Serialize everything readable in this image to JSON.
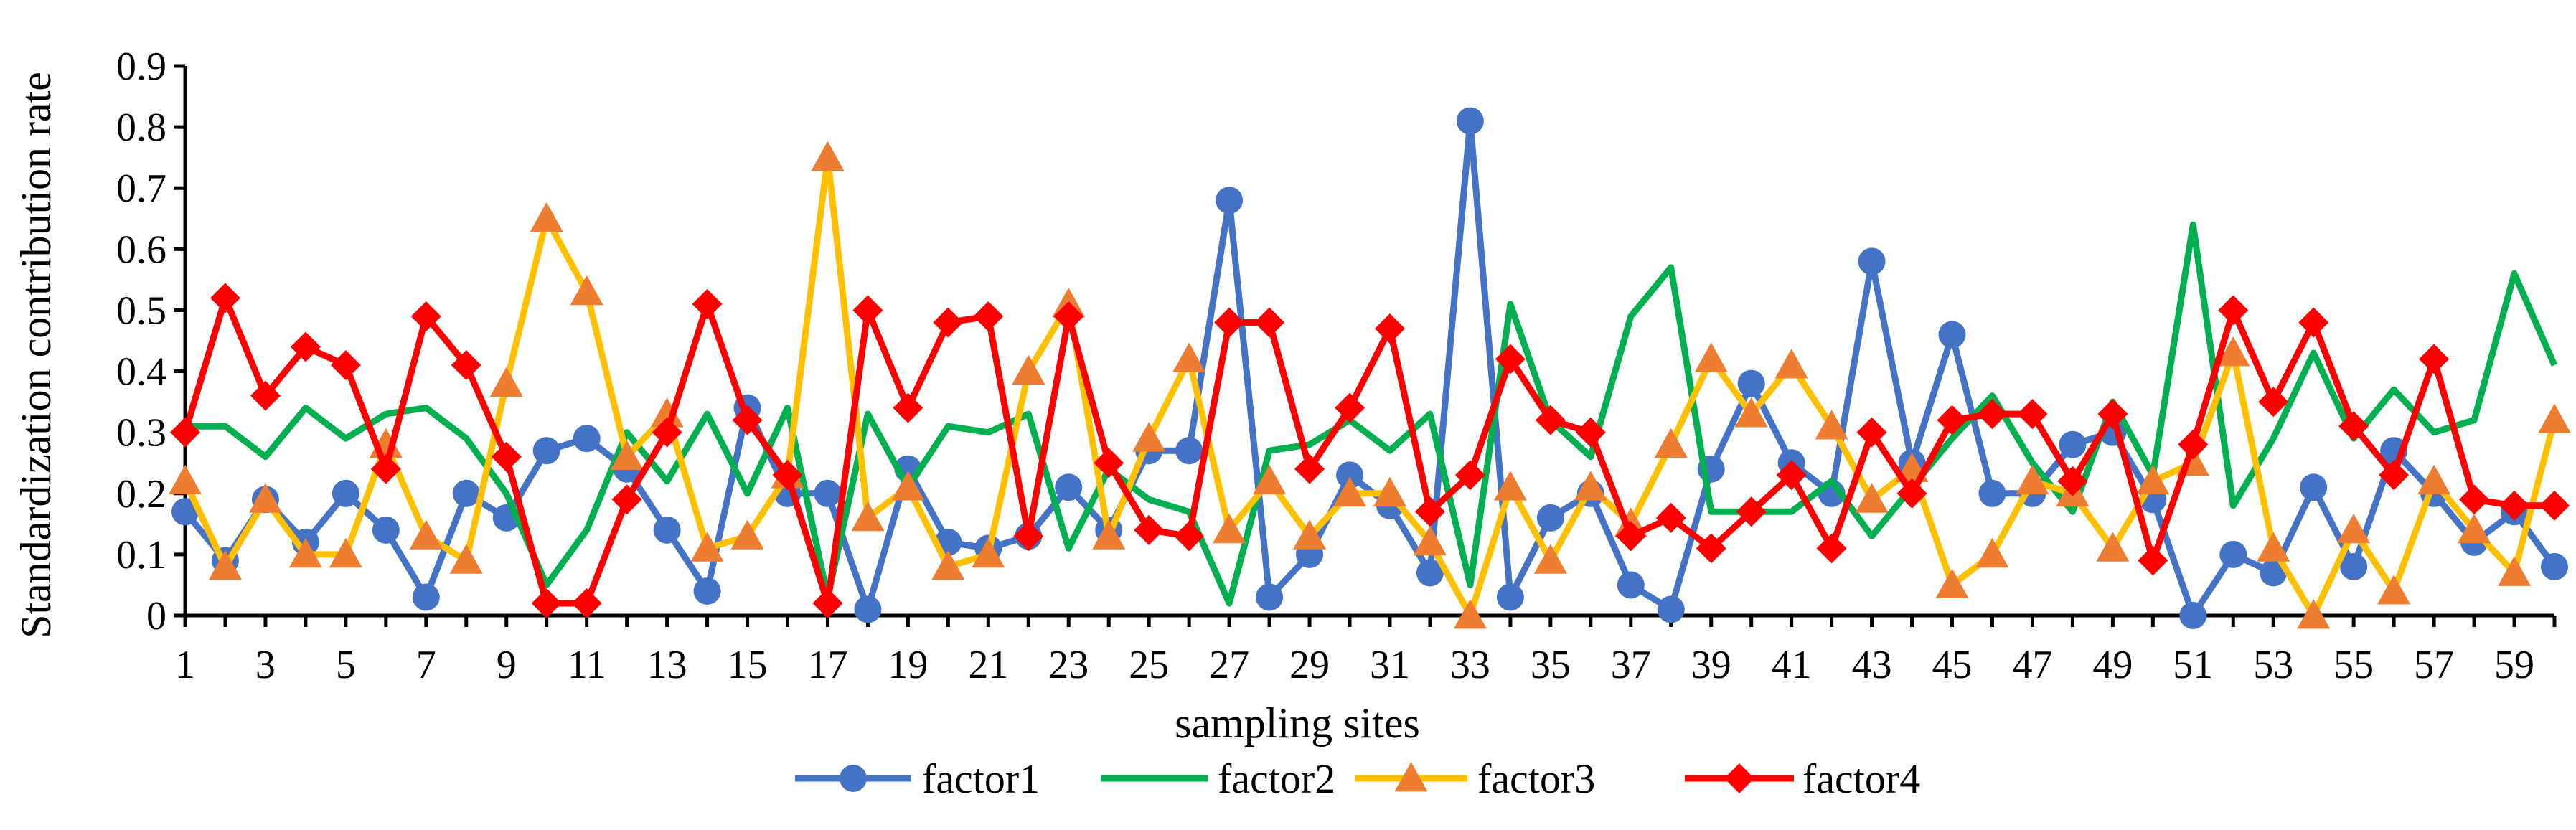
{
  "chart_data": {
    "type": "line",
    "title": "",
    "xlabel": "sampling sites",
    "ylabel": "Standardization contribution rate",
    "ylim": [
      0,
      0.9
    ],
    "yticks": [
      "0",
      "0.1",
      "0.2",
      "0.3",
      "0.4",
      "0.5",
      "0.6",
      "0.7",
      "0.8",
      "0.9"
    ],
    "xticks": [
      "1",
      "3",
      "5",
      "7",
      "9",
      "11",
      "13",
      "15",
      "17",
      "19",
      "21",
      "23",
      "25",
      "27",
      "29",
      "31",
      "33",
      "35",
      "37",
      "39",
      "41",
      "43",
      "45",
      "47",
      "49",
      "51",
      "53",
      "55",
      "57",
      "59"
    ],
    "x": [
      1,
      2,
      3,
      4,
      5,
      6,
      7,
      8,
      9,
      10,
      11,
      12,
      13,
      14,
      15,
      16,
      17,
      18,
      19,
      20,
      21,
      22,
      23,
      24,
      25,
      26,
      27,
      28,
      29,
      30,
      31,
      32,
      33,
      34,
      35,
      36,
      37,
      38,
      39,
      40,
      41,
      42,
      43,
      44,
      45,
      46,
      47,
      48,
      49,
      50,
      51,
      52,
      53,
      54,
      55,
      56,
      57,
      58,
      59,
      60
    ],
    "grid": false,
    "legend_position": "bottom",
    "series": [
      {
        "name": "factor1",
        "color": "#4472C4",
        "marker": "circle",
        "values": [
          0.17,
          0.09,
          0.19,
          0.12,
          0.2,
          0.14,
          0.03,
          0.2,
          0.16,
          0.27,
          0.29,
          0.24,
          0.14,
          0.04,
          0.34,
          0.2,
          0.2,
          0.01,
          0.24,
          0.12,
          0.11,
          0.13,
          0.21,
          0.14,
          0.27,
          0.27,
          0.68,
          0.03,
          0.1,
          0.23,
          0.18,
          0.07,
          0.81,
          0.03,
          0.16,
          0.2,
          0.05,
          0.01,
          0.24,
          0.38,
          0.25,
          0.2,
          0.58,
          0.25,
          0.46,
          0.2,
          0.2,
          0.28,
          0.3,
          0.19,
          0.0,
          0.1,
          0.07,
          0.21,
          0.08,
          0.27,
          0.2,
          0.12,
          0.17,
          0.08
        ]
      },
      {
        "name": "factor2",
        "color": "#00B050",
        "marker": "none",
        "values": [
          0.31,
          0.31,
          0.26,
          0.34,
          0.29,
          0.33,
          0.34,
          0.29,
          0.2,
          0.05,
          0.14,
          0.3,
          0.22,
          0.33,
          0.2,
          0.34,
          0.03,
          0.33,
          0.21,
          0.31,
          0.3,
          0.33,
          0.11,
          0.24,
          0.19,
          0.17,
          0.02,
          0.27,
          0.28,
          0.32,
          0.27,
          0.33,
          0.05,
          0.51,
          0.32,
          0.26,
          0.49,
          0.57,
          0.17,
          0.17,
          0.17,
          0.22,
          0.13,
          0.21,
          0.29,
          0.36,
          0.25,
          0.17,
          0.35,
          0.23,
          0.64,
          0.18,
          0.29,
          0.43,
          0.29,
          0.37,
          0.3,
          0.32,
          0.56,
          0.41
        ]
      },
      {
        "name": "factor3",
        "color": "#FFC000",
        "marker": "triangle",
        "markerColor": "#ED7D31",
        "values": [
          0.22,
          0.08,
          0.19,
          0.1,
          0.1,
          0.28,
          0.13,
          0.09,
          0.38,
          0.65,
          0.53,
          0.26,
          0.33,
          0.11,
          0.13,
          0.23,
          0.75,
          0.16,
          0.21,
          0.08,
          0.1,
          0.4,
          0.51,
          0.13,
          0.29,
          0.42,
          0.14,
          0.22,
          0.13,
          0.2,
          0.2,
          0.12,
          0.0,
          0.21,
          0.09,
          0.21,
          0.15,
          0.28,
          0.42,
          0.33,
          0.41,
          0.31,
          0.19,
          0.24,
          0.05,
          0.1,
          0.22,
          0.2,
          0.11,
          0.22,
          0.25,
          0.43,
          0.11,
          0.0,
          0.14,
          0.04,
          0.22,
          0.14,
          0.07,
          0.32
        ]
      },
      {
        "name": "factor4",
        "color": "#FF0000",
        "marker": "diamond",
        "values": [
          0.3,
          0.52,
          0.36,
          0.44,
          0.41,
          0.24,
          0.49,
          0.41,
          0.26,
          0.02,
          0.02,
          0.19,
          0.3,
          0.51,
          0.32,
          0.23,
          0.02,
          0.5,
          0.34,
          0.48,
          0.49,
          0.13,
          0.49,
          0.25,
          0.14,
          0.13,
          0.48,
          0.48,
          0.24,
          0.34,
          0.47,
          0.17,
          0.23,
          0.42,
          0.32,
          0.3,
          0.13,
          0.16,
          0.11,
          0.17,
          0.23,
          0.11,
          0.3,
          0.2,
          0.32,
          0.33,
          0.33,
          0.22,
          0.33,
          0.09,
          0.28,
          0.5,
          0.35,
          0.48,
          0.31,
          0.23,
          0.42,
          0.19,
          0.18,
          0.18
        ]
      }
    ]
  }
}
